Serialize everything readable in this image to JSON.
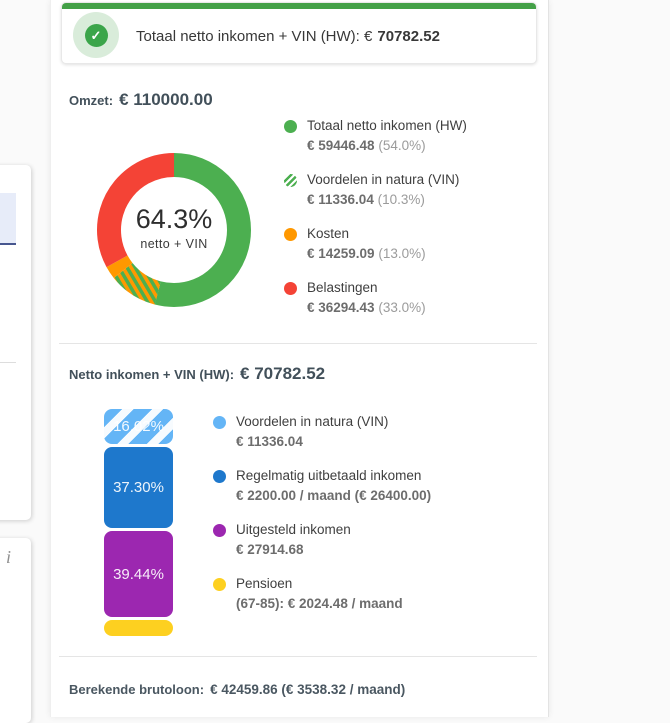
{
  "alert": {
    "label": "Totaal netto inkomen + VIN (HW): €",
    "value": "70782.52"
  },
  "omzet_heading": {
    "label": "Omzet:",
    "value": "€ 110000.00"
  },
  "net_heading": {
    "label": "Netto inkomen + VIN (HW):",
    "value": "€ 70782.52"
  },
  "gross_heading": {
    "label": "Berekende brutoloon:",
    "value": "€ 42459.86 (€ 3538.32 / maand)"
  },
  "side": {
    "info_icon": "i",
    "check_icon": "✓"
  },
  "colors": {
    "green": "#4caf50",
    "orange": "#ff9800",
    "red": "#f44336",
    "light_blue": "#64b5f6",
    "blue": "#1e78cc",
    "purple": "#9c27b0",
    "yellow": "#fdd020",
    "alert_green": "#43a047"
  },
  "chart_data": [
    {
      "type": "pie",
      "title": "Omzet: € 110000.00",
      "center_label": "64.3%",
      "center_sublabel": "netto + VIN",
      "legend_position": "right",
      "segments": [
        {
          "label": "Totaal netto inkomen (HW)",
          "amount": "€ 59446.48",
          "pct": 54.0,
          "color": "#4caf50",
          "style": "solid"
        },
        {
          "label": "Voordelen in natura (VIN)",
          "amount": "€ 11336.04",
          "pct": 10.3,
          "color": "#4caf50",
          "style": "hatched-over-orange"
        },
        {
          "label": "Kosten",
          "amount": "€ 14259.09",
          "pct": 13.0,
          "color": "#ff9800",
          "style": "solid"
        },
        {
          "label": "Belastingen",
          "amount": "€ 36294.43",
          "pct": 33.0,
          "color": "#f44336",
          "style": "solid"
        }
      ],
      "draw_segments": [
        {
          "pct": 54.0,
          "color": "#4caf50"
        },
        {
          "pct": 10.3,
          "color": "hatch"
        },
        {
          "pct": 2.7,
          "color": "#ff9800"
        },
        {
          "pct": 33.0,
          "color": "#f44336"
        }
      ],
      "legend": [
        {
          "label": "Totaal netto inkomen (HW)",
          "value_bold": "€ 59446.48",
          "value_note": "(54.0%)",
          "dot": "#4caf50",
          "dot_style": "solid"
        },
        {
          "label": "Voordelen in natura (VIN)",
          "value_bold": "€ 11336.04",
          "value_note": "(10.3%)",
          "dot": "#4caf50",
          "dot_style": "hatched"
        },
        {
          "label": "Kosten",
          "value_bold": "€ 14259.09",
          "value_note": "(13.0%)",
          "dot": "#ff9800",
          "dot_style": "solid"
        },
        {
          "label": "Belastingen",
          "value_bold": "€ 36294.43",
          "value_note": "(33.0%)",
          "dot": "#f44336",
          "dot_style": "solid"
        }
      ]
    },
    {
      "type": "bar",
      "subtype": "stacked-vertical",
      "title": "Netto inkomen + VIN (HW): € 70782.52",
      "segments": [
        {
          "label": "16.02%",
          "pct": 16.02,
          "color": "#64b5f6",
          "hatched": true
        },
        {
          "label": "37.30%",
          "pct": 37.3,
          "color": "#1e78cc",
          "hatched": false
        },
        {
          "label": "39.44%",
          "pct": 39.44,
          "color": "#9c27b0",
          "hatched": false
        },
        {
          "label": "",
          "pct": 7.24,
          "color": "#fdd020",
          "hatched": false
        }
      ],
      "legend": [
        {
          "label": "Voordelen in natura (VIN)",
          "value_bold": "€ 11336.04",
          "value_note": "",
          "dot": "#64b5f6",
          "dot_style": "solid"
        },
        {
          "label": "Regelmatig uitbetaald inkomen",
          "value_bold": "€ 2200.00 / maand (€ 26400.00)",
          "value_note": "",
          "dot": "#1e78cc",
          "dot_style": "solid"
        },
        {
          "label": "Uitgesteld inkomen",
          "value_bold": "€ 27914.68",
          "value_note": "",
          "dot": "#9c27b0",
          "dot_style": "solid"
        },
        {
          "label": "Pensioen",
          "value_bold": "(67-85): € 2024.48 / maand",
          "value_note": "",
          "dot": "#fdd020",
          "dot_style": "solid"
        }
      ]
    }
  ]
}
